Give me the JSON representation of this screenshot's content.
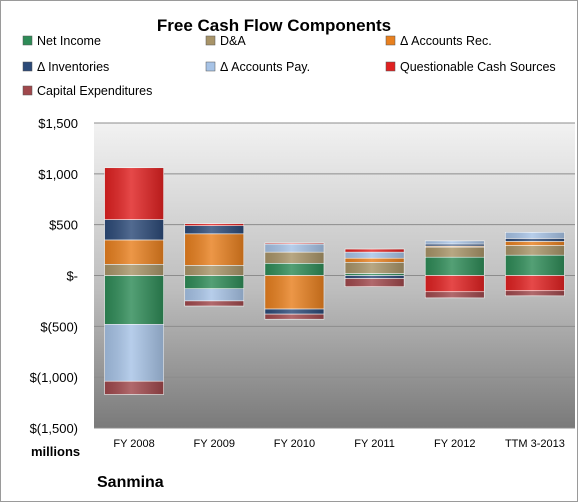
{
  "chart_data": {
    "type": "bar",
    "stacked": true,
    "title": "Free Cash Flow Components",
    "unit_label": "millions",
    "footer": "Sanmina",
    "categories": [
      "FY 2008",
      "FY 2009",
      "FY 2010",
      "FY 2011",
      "FY 2012",
      "TTM 3-2013"
    ],
    "ylim": [
      -1500,
      1500
    ],
    "yticks": [
      1500,
      1000,
      500,
      0,
      -500,
      -1000,
      -1500
    ],
    "ytick_labels": [
      "$1,500",
      "$1,000",
      "$500",
      "$-",
      "$(500)",
      "$(1,000)",
      "$(1,500)"
    ],
    "grid": true,
    "legend_position": "top",
    "series": [
      {
        "name": "Net Income",
        "color": "#2e8b57",
        "values": [
          -480,
          -130,
          120,
          20,
          180,
          200
        ]
      },
      {
        "name": "D&A",
        "color": "#a89468",
        "values": [
          110,
          100,
          110,
          110,
          100,
          95
        ]
      },
      {
        "name": "Δ Accounts Rec.",
        "color": "#e8801f",
        "values": [
          240,
          310,
          -330,
          40,
          10,
          40
        ]
      },
      {
        "name": "Δ Inventories",
        "color": "#2c4a78",
        "values": [
          200,
          80,
          -50,
          -30,
          20,
          30
        ]
      },
      {
        "name": "Δ Accounts Pay.",
        "color": "#a7c3e6",
        "values": [
          -560,
          -120,
          80,
          60,
          30,
          60
        ]
      },
      {
        "name": "Questionable Cash Sources",
        "color": "#e02121",
        "values": [
          510,
          20,
          10,
          30,
          -160,
          -150
        ]
      },
      {
        "name": "Capital Expenditures",
        "color": "#a0484c",
        "values": [
          -130,
          -50,
          -50,
          -80,
          -60,
          -50
        ]
      }
    ]
  }
}
